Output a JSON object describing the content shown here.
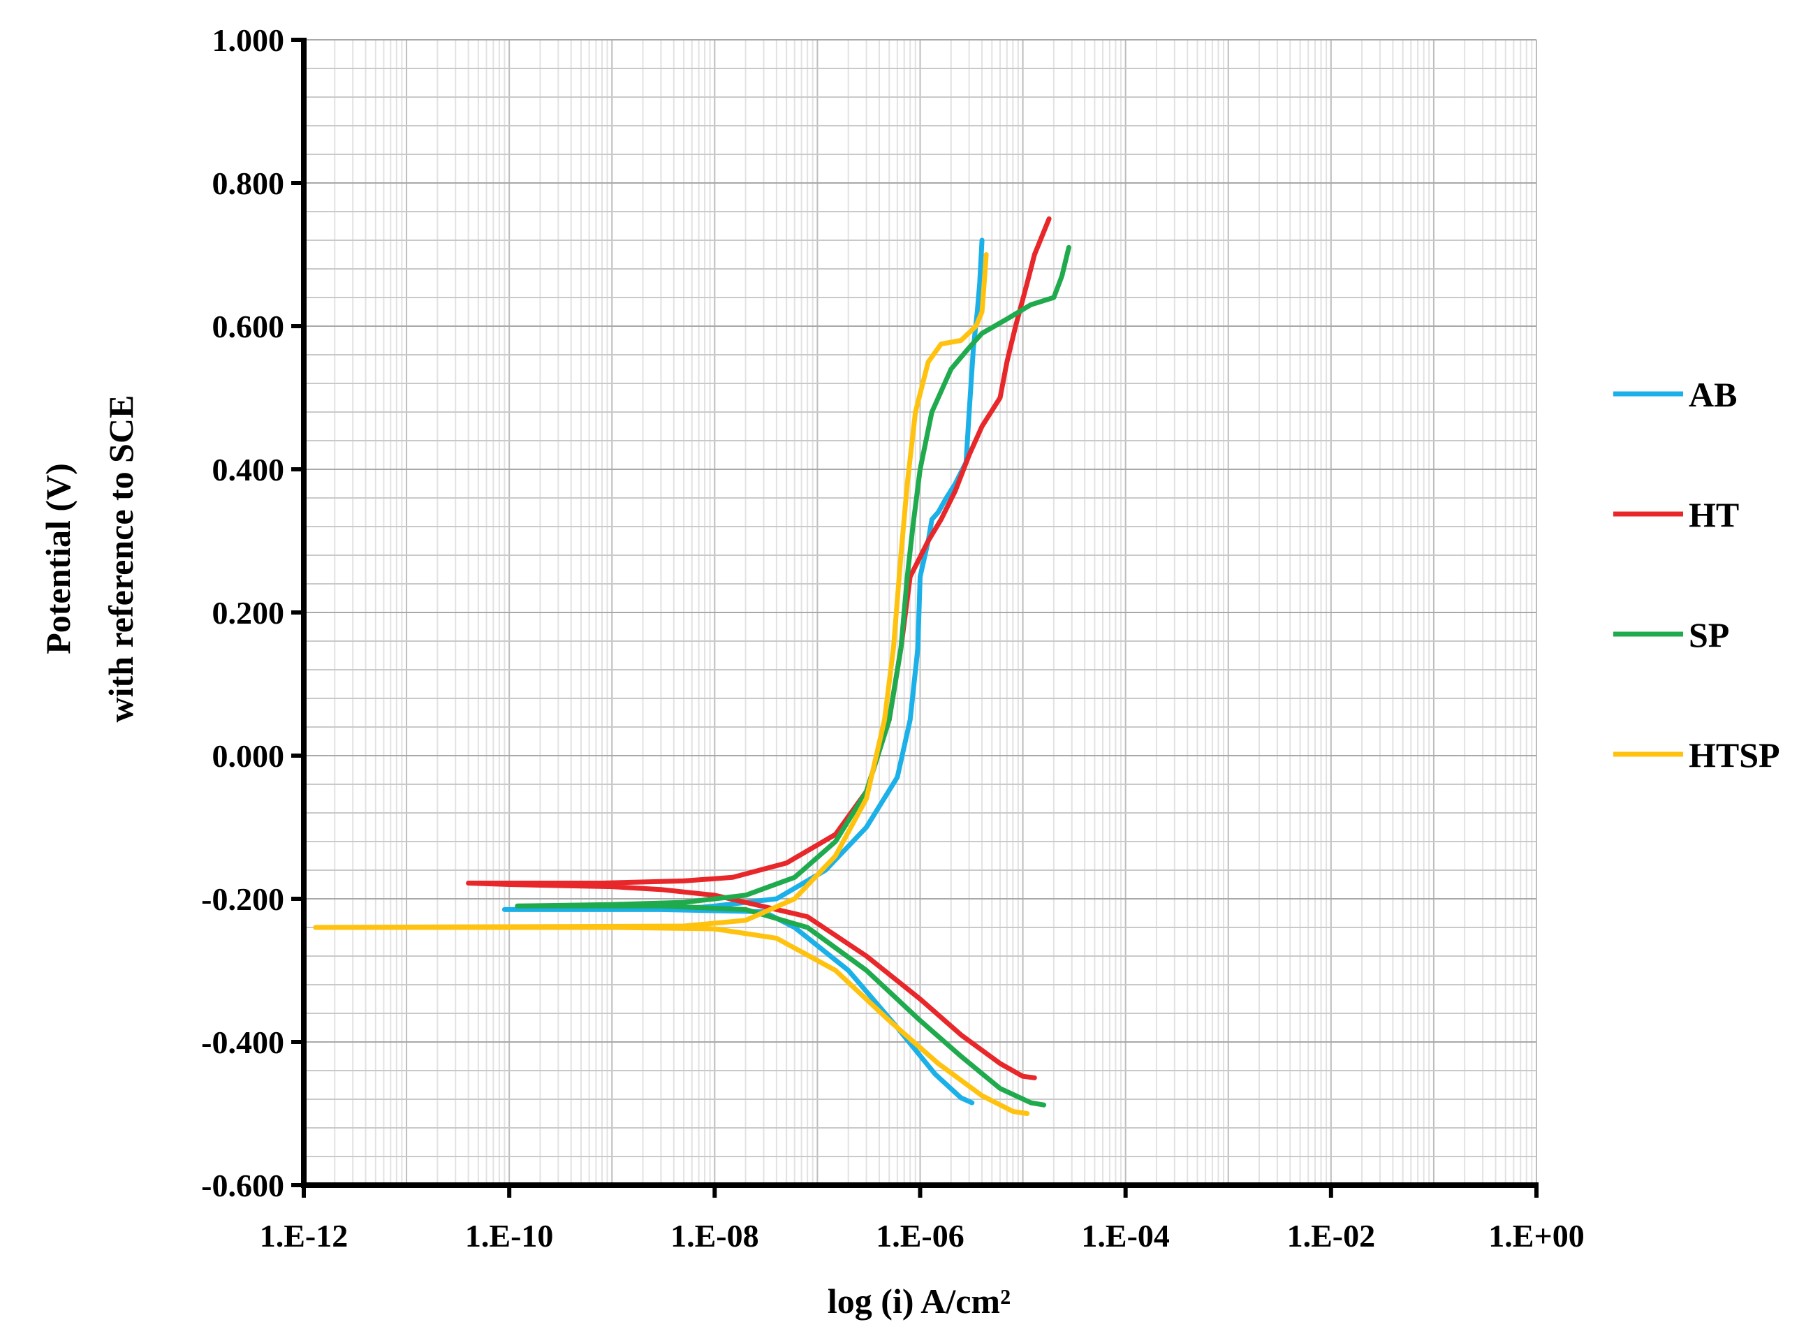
{
  "chart_data": {
    "type": "line",
    "x_scale": "log",
    "xlabel": "log (i) A/cm²",
    "ylabel_line1": "Potential (V)",
    "ylabel_line2": "with reference to SCE",
    "xlim": [
      "1.E-12",
      "1.E+00"
    ],
    "ylim": [
      -0.6,
      1.0
    ],
    "x_ticks": [
      "1.E-12",
      "1.E-10",
      "1.E-08",
      "1.E-06",
      "1.E-04",
      "1.E-02",
      "1.E+00"
    ],
    "y_ticks": [
      "1.000",
      "0.800",
      "0.600",
      "0.400",
      "0.200",
      "0.000",
      "-0.200",
      "-0.400",
      "-0.600"
    ],
    "grid": true,
    "legend_position": "right",
    "series": [
      {
        "name": "AB",
        "color": "#1BB0E8",
        "points": [
          [
            3.2e-06,
            -0.485
          ],
          [
            2.5e-06,
            -0.478
          ],
          [
            1.4e-06,
            -0.445
          ],
          [
            6e-07,
            -0.38
          ],
          [
            2e-07,
            -0.3
          ],
          [
            6e-08,
            -0.24
          ],
          [
            3e-08,
            -0.218
          ],
          [
            3e-09,
            -0.215
          ],
          [
            3e-10,
            -0.215
          ],
          [
            9e-11,
            -0.215
          ],
          [
            6e-09,
            -0.213
          ],
          [
            1e-08,
            -0.21
          ],
          [
            4e-08,
            -0.2
          ],
          [
            1.2e-07,
            -0.16
          ],
          [
            3e-07,
            -0.1
          ],
          [
            6e-07,
            -0.03
          ],
          [
            8e-07,
            0.05
          ],
          [
            9.5e-07,
            0.15
          ],
          [
            1e-06,
            0.25
          ],
          [
            1.2e-06,
            0.3
          ],
          [
            1.3e-06,
            0.33
          ],
          [
            1.5e-06,
            0.34
          ],
          [
            1.8e-06,
            0.36
          ],
          [
            2.2e-06,
            0.38
          ],
          [
            2.8e-06,
            0.41
          ],
          [
            3e-06,
            0.48
          ],
          [
            3.3e-06,
            0.57
          ],
          [
            3.6e-06,
            0.62
          ],
          [
            3.8e-06,
            0.66
          ],
          [
            4e-06,
            0.72
          ]
        ]
      },
      {
        "name": "HT",
        "color": "#E8272A",
        "points": [
          [
            1.3e-05,
            -0.45
          ],
          [
            1e-05,
            -0.448
          ],
          [
            6e-06,
            -0.43
          ],
          [
            2.5e-06,
            -0.39
          ],
          [
            1e-06,
            -0.34
          ],
          [
            3e-07,
            -0.28
          ],
          [
            8e-08,
            -0.225
          ],
          [
            2e-08,
            -0.205
          ],
          [
            1e-08,
            -0.195
          ],
          [
            3e-09,
            -0.187
          ],
          [
            1e-09,
            -0.183
          ],
          [
            1e-10,
            -0.18
          ],
          [
            4e-11,
            -0.178
          ],
          [
            8e-10,
            -0.178
          ],
          [
            5e-09,
            -0.175
          ],
          [
            1.5e-08,
            -0.17
          ],
          [
            5e-08,
            -0.15
          ],
          [
            1.5e-07,
            -0.11
          ],
          [
            3e-07,
            -0.05
          ],
          [
            5e-07,
            0.05
          ],
          [
            6.5e-07,
            0.15
          ],
          [
            8e-07,
            0.25
          ],
          [
            1.2e-06,
            0.3
          ],
          [
            1.6e-06,
            0.33
          ],
          [
            2.2e-06,
            0.37
          ],
          [
            3e-06,
            0.42
          ],
          [
            4e-06,
            0.46
          ],
          [
            6e-06,
            0.5
          ],
          [
            7e-06,
            0.55
          ],
          [
            8.5e-06,
            0.6
          ],
          [
            1.1e-05,
            0.66
          ],
          [
            1.3e-05,
            0.7
          ],
          [
            1.8e-05,
            0.75
          ]
        ]
      },
      {
        "name": "SP",
        "color": "#1FAA4D",
        "points": [
          [
            1.6e-05,
            -0.488
          ],
          [
            1.2e-05,
            -0.485
          ],
          [
            6e-06,
            -0.465
          ],
          [
            2.5e-06,
            -0.42
          ],
          [
            1e-06,
            -0.37
          ],
          [
            3e-07,
            -0.3
          ],
          [
            8e-08,
            -0.24
          ],
          [
            2e-08,
            -0.215
          ],
          [
            3e-09,
            -0.21
          ],
          [
            3e-10,
            -0.21
          ],
          [
            1.2e-10,
            -0.21
          ],
          [
            1e-09,
            -0.208
          ],
          [
            5e-09,
            -0.205
          ],
          [
            2e-08,
            -0.195
          ],
          [
            6e-08,
            -0.17
          ],
          [
            1.5e-07,
            -0.12
          ],
          [
            3e-07,
            -0.05
          ],
          [
            5e-07,
            0.05
          ],
          [
            6.5e-07,
            0.15
          ],
          [
            7.5e-07,
            0.25
          ],
          [
            8.5e-07,
            0.32
          ],
          [
            1e-06,
            0.4
          ],
          [
            1.3e-06,
            0.48
          ],
          [
            2e-06,
            0.54
          ],
          [
            3e-06,
            0.57
          ],
          [
            4e-06,
            0.59
          ],
          [
            7e-06,
            0.61
          ],
          [
            1.2e-05,
            0.63
          ],
          [
            2e-05,
            0.64
          ],
          [
            2.4e-05,
            0.67
          ],
          [
            2.8e-05,
            0.71
          ]
        ]
      },
      {
        "name": "HTSP",
        "color": "#FFC20E",
        "points": [
          [
            1.1e-05,
            -0.5
          ],
          [
            8e-06,
            -0.497
          ],
          [
            4e-06,
            -0.475
          ],
          [
            1.5e-06,
            -0.43
          ],
          [
            5e-07,
            -0.37
          ],
          [
            1.5e-07,
            -0.3
          ],
          [
            4e-08,
            -0.255
          ],
          [
            1e-08,
            -0.242
          ],
          [
            1e-09,
            -0.24
          ],
          [
            1e-10,
            -0.24
          ],
          [
            1e-11,
            -0.24
          ],
          [
            1.3e-12,
            -0.24
          ],
          [
            5e-09,
            -0.238
          ],
          [
            2e-08,
            -0.23
          ],
          [
            6e-08,
            -0.2
          ],
          [
            1.5e-07,
            -0.14
          ],
          [
            3e-07,
            -0.06
          ],
          [
            4.5e-07,
            0.05
          ],
          [
            5.5e-07,
            0.15
          ],
          [
            6.5e-07,
            0.28
          ],
          [
            7.5e-07,
            0.38
          ],
          [
            9e-07,
            0.48
          ],
          [
            1.2e-06,
            0.55
          ],
          [
            1.6e-06,
            0.575
          ],
          [
            2.5e-06,
            0.58
          ],
          [
            3.5e-06,
            0.6
          ],
          [
            4e-06,
            0.62
          ],
          [
            4.2e-06,
            0.66
          ],
          [
            4.4e-06,
            0.7
          ]
        ]
      }
    ]
  }
}
